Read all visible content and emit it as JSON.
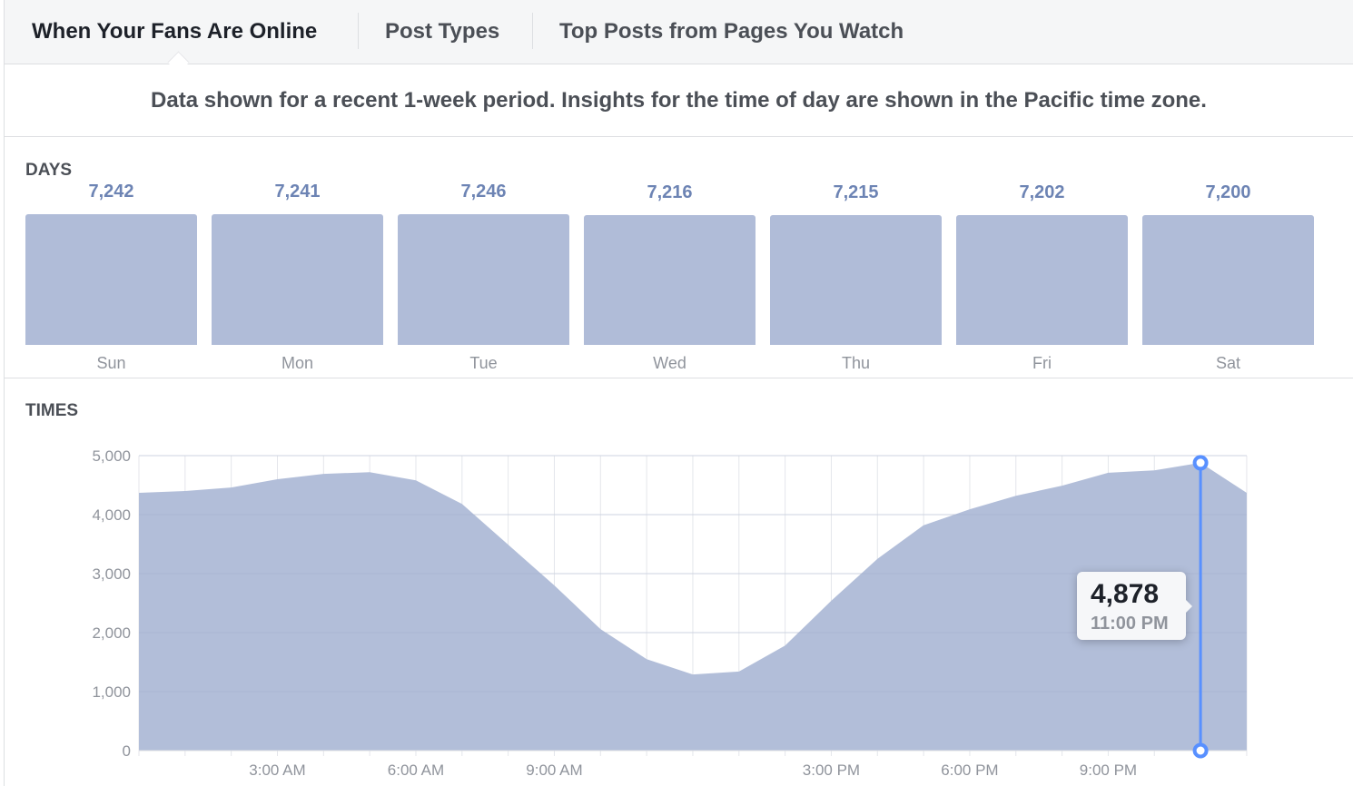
{
  "tabs": [
    {
      "label": "When Your Fans Are Online",
      "active": true
    },
    {
      "label": "Post Types",
      "active": false
    },
    {
      "label": "Top Posts from Pages You Watch",
      "active": false
    }
  ],
  "notice": "Data shown for a recent 1-week period. Insights for the time of day are shown in the Pacific time zone.",
  "days_section": {
    "title": "DAYS"
  },
  "times_section": {
    "title": "TIMES"
  },
  "colors": {
    "bar": "#b0bcd8",
    "value_text": "#6d84b4",
    "cursor": "#5890ff"
  },
  "tooltip": {
    "value": "4,878",
    "time": "11:00 PM"
  },
  "chart_data": [
    {
      "type": "bar",
      "title": "DAYS",
      "categories": [
        "Sun",
        "Mon",
        "Tue",
        "Wed",
        "Thu",
        "Fri",
        "Sat"
      ],
      "values": [
        7242,
        7241,
        7246,
        7216,
        7215,
        7202,
        7200
      ],
      "value_labels": [
        "7,242",
        "7,241",
        "7,246",
        "7,216",
        "7,215",
        "7,202",
        "7,200"
      ]
    },
    {
      "type": "area",
      "title": "TIMES",
      "x_hours": [
        0,
        1,
        2,
        3,
        4,
        5,
        6,
        7,
        8,
        9,
        10,
        11,
        12,
        13,
        14,
        15,
        16,
        17,
        18,
        19,
        20,
        21,
        22,
        23,
        24
      ],
      "values": [
        4370,
        4400,
        4460,
        4600,
        4690,
        4720,
        4580,
        4180,
        3490,
        2800,
        2060,
        1550,
        1290,
        1340,
        1780,
        2540,
        3250,
        3820,
        4090,
        4320,
        4490,
        4710,
        4750,
        4878,
        4370
      ],
      "ylim": [
        0,
        5000
      ],
      "yticks": [
        0,
        1000,
        2000,
        3000,
        4000,
        5000
      ],
      "ytick_labels": [
        "0",
        "1,000",
        "2,000",
        "3,000",
        "4,000",
        "5,000"
      ],
      "xticks": [
        3,
        6,
        9,
        15,
        18,
        21
      ],
      "xtick_labels": [
        "3:00 AM",
        "6:00 AM",
        "9:00 AM",
        "3:00 PM",
        "6:00 PM",
        "9:00 PM"
      ],
      "grid": true,
      "highlight_hour": 23
    }
  ]
}
